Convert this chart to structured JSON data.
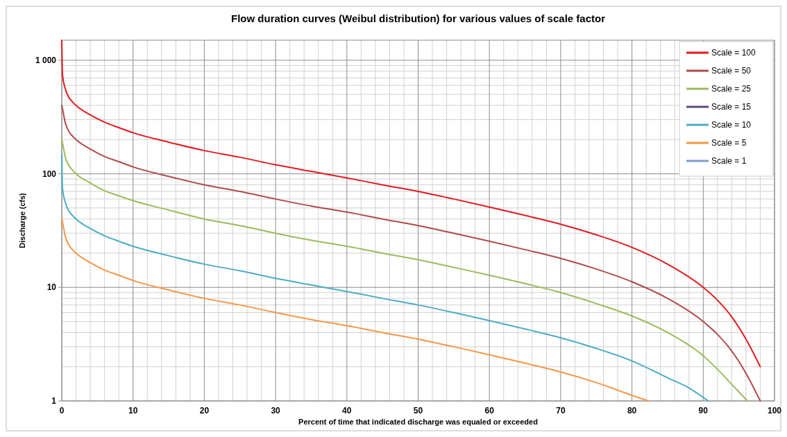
{
  "chart_data": {
    "type": "line",
    "title": "Flow duration curves (Weibul distribution) for various values of scale factor",
    "xlabel": "Percent of time that indicated discharge was equaled or exceeded",
    "ylabel": "Discharge (cfs)",
    "log": "y",
    "grid": true,
    "legend": "top right",
    "marker": "none",
    "line_style": "solid",
    "xlim": [
      0,
      100
    ],
    "xticks": [
      0,
      10,
      20,
      30,
      40,
      50,
      60,
      70,
      80,
      90,
      100
    ],
    "ylim": [
      1,
      1500
    ],
    "yticks": [
      1,
      10,
      100,
      {
        "value": 1000,
        "label": "1 000"
      }
    ],
    "series": [
      {
        "name": "Scale = 100",
        "color": "#e3191c",
        "x": [
          0,
          0.1,
          0.5,
          1,
          1.5,
          2,
          4,
          6,
          8,
          10,
          15,
          20,
          25,
          30,
          35,
          40,
          45,
          50,
          55,
          60,
          65,
          70,
          75,
          80,
          85,
          90,
          92,
          94,
          96,
          98
        ],
        "values": [
          1500,
          750,
          560,
          470,
          430,
          400,
          330,
          285,
          255,
          230,
          190,
          160,
          140,
          120,
          105,
          92,
          80,
          70,
          60,
          51,
          43,
          36,
          29,
          22.5,
          16,
          10,
          7.7,
          5.5,
          3.5,
          2
        ]
      },
      {
        "name": "Scale = 50",
        "color": "#b04a4a",
        "x": [
          0,
          0.1,
          0.5,
          1,
          1.5,
          2,
          4,
          6,
          8,
          10,
          15,
          20,
          25,
          30,
          35,
          40,
          45,
          50,
          55,
          60,
          65,
          70,
          75,
          80,
          85,
          90,
          92,
          94,
          96,
          98
        ],
        "values": [
          400,
          375,
          280,
          235,
          215,
          200,
          165,
          142,
          128,
          115,
          95,
          80,
          70,
          60,
          52,
          46,
          40,
          35,
          30,
          25.5,
          21.5,
          18,
          14.5,
          11.2,
          8,
          5,
          3.85,
          2.75,
          1.75,
          1
        ]
      },
      {
        "name": "Scale = 25",
        "color": "#9bbb59",
        "x": [
          0,
          0.1,
          0.5,
          1,
          1.5,
          2,
          4,
          6,
          8,
          10,
          15,
          20,
          25,
          30,
          35,
          40,
          45,
          50,
          55,
          60,
          65,
          70,
          75,
          80,
          85,
          90,
          92,
          94,
          96.2
        ],
        "values": [
          200,
          188,
          140,
          118,
          108,
          100,
          83,
          71,
          64,
          58,
          48,
          40,
          35,
          30,
          26,
          23,
          20,
          17.5,
          15,
          12.8,
          10.8,
          9,
          7.2,
          5.6,
          4,
          2.5,
          1.9,
          1.4,
          1
        ]
      },
      {
        "name": "Scale = 15",
        "color": "#604a7b"
      },
      {
        "name": "Scale = 10",
        "color": "#4bacc6",
        "x": [
          0,
          0.1,
          0.5,
          1,
          1.5,
          2,
          4,
          6,
          8,
          10,
          15,
          20,
          25,
          30,
          35,
          40,
          45,
          50,
          55,
          60,
          65,
          70,
          75,
          80,
          85,
          88,
          90.7
        ],
        "values": [
          150,
          75,
          56,
          47,
          43,
          40,
          33,
          28.5,
          25.5,
          23,
          19,
          16,
          14,
          12,
          10.5,
          9.2,
          8,
          7,
          6,
          5.1,
          4.3,
          3.6,
          2.9,
          2.25,
          1.6,
          1.3,
          1
        ]
      },
      {
        "name": "Scale = 5",
        "color": "#f79646",
        "x": [
          0,
          0.1,
          0.5,
          1,
          1.5,
          2,
          4,
          6,
          8,
          10,
          15,
          20,
          25,
          30,
          35,
          40,
          45,
          50,
          55,
          60,
          65,
          70,
          75,
          80,
          82.3
        ],
        "values": [
          40,
          37.5,
          28,
          23.5,
          21.5,
          20,
          16.5,
          14.2,
          12.8,
          11.5,
          9.5,
          8,
          7,
          6,
          5.2,
          4.6,
          4,
          3.5,
          3,
          2.55,
          2.15,
          1.8,
          1.45,
          1.12,
          1
        ]
      },
      {
        "name": "Scale = 1",
        "color": "#7e9bc8"
      }
    ]
  }
}
